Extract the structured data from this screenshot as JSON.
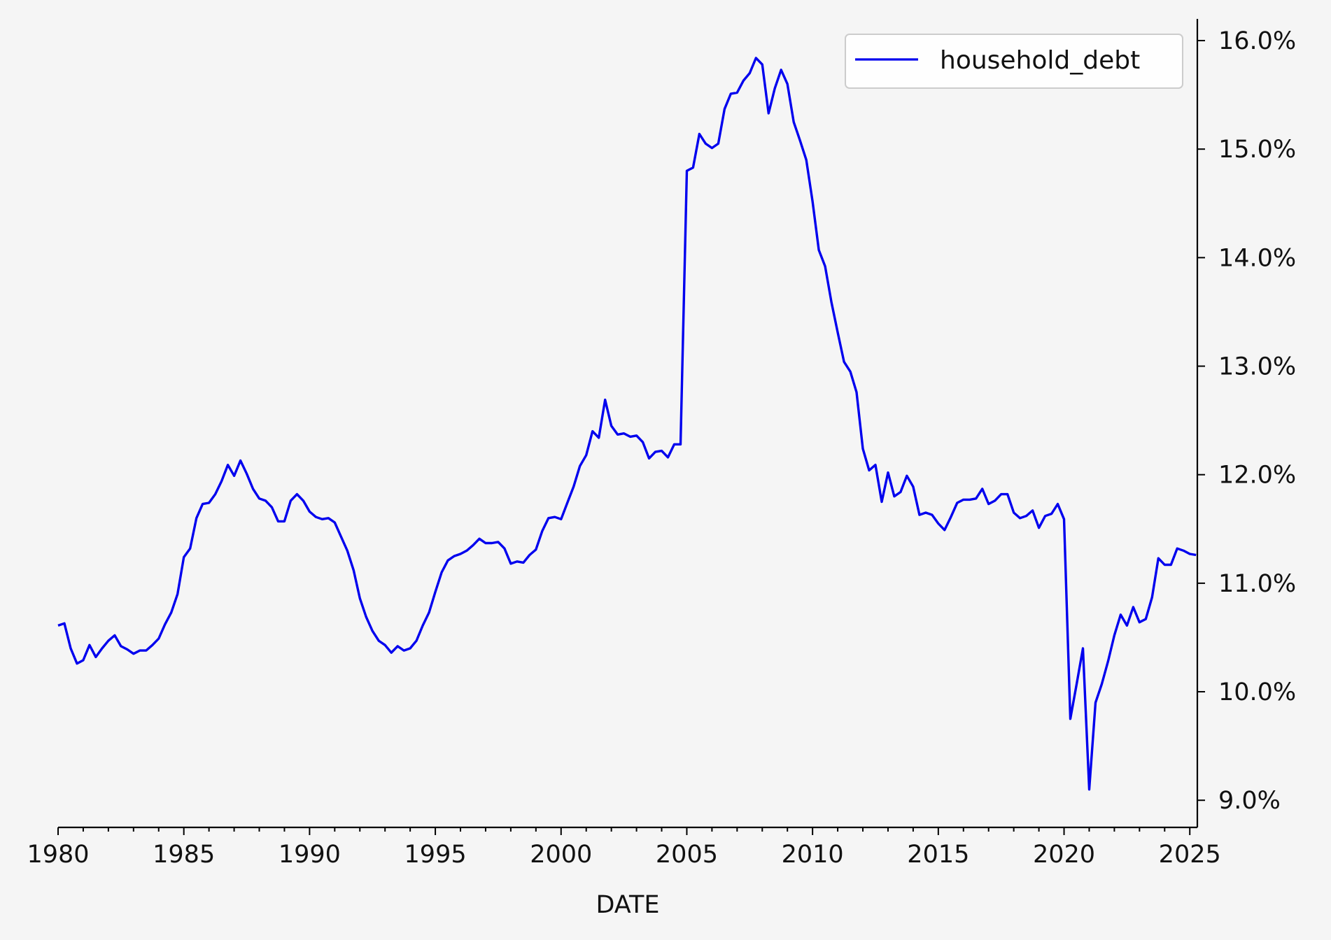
{
  "chart_data": {
    "type": "line",
    "title": "",
    "xlabel": "DATE",
    "ylabel": "",
    "xlim": [
      1980,
      2025.3
    ],
    "ylim": [
      8.75,
      16.2
    ],
    "y_axis_position": "right",
    "y_tick_format": "percent",
    "grid": false,
    "legend_position": "top-right",
    "x_ticks": [
      "1980",
      "1985",
      "1990",
      "1995",
      "2000",
      "2005",
      "2010",
      "2015",
      "2020",
      "2025"
    ],
    "y_ticks": [
      "9.0%",
      "10.0%",
      "11.0%",
      "12.0%",
      "13.0%",
      "14.0%",
      "15.0%",
      "16.0%"
    ],
    "series": [
      {
        "name": "household_debt",
        "color": "#0000ee",
        "x": [
          1980.0,
          1980.25,
          1980.5,
          1980.75,
          1981.0,
          1981.25,
          1981.5,
          1981.75,
          1982.0,
          1982.25,
          1982.5,
          1982.75,
          1983.0,
          1983.25,
          1983.5,
          1983.75,
          1984.0,
          1984.25,
          1984.5,
          1984.75,
          1985.0,
          1985.25,
          1985.5,
          1985.75,
          1986.0,
          1986.25,
          1986.5,
          1986.75,
          1987.0,
          1987.25,
          1987.5,
          1987.75,
          1988.0,
          1988.25,
          1988.5,
          1988.75,
          1989.0,
          1989.25,
          1989.5,
          1989.75,
          1990.0,
          1990.25,
          1990.5,
          1990.75,
          1991.0,
          1991.25,
          1991.5,
          1991.75,
          1992.0,
          1992.25,
          1992.5,
          1992.75,
          1993.0,
          1993.25,
          1993.5,
          1993.75,
          1994.0,
          1994.25,
          1994.5,
          1994.75,
          1995.0,
          1995.25,
          1995.5,
          1995.75,
          1996.0,
          1996.25,
          1996.5,
          1996.75,
          1997.0,
          1997.25,
          1997.5,
          1997.75,
          1998.0,
          1998.25,
          1998.5,
          1998.75,
          1999.0,
          1999.25,
          1999.5,
          1999.75,
          2000.0,
          2000.25,
          2000.5,
          2000.75,
          2001.0,
          2001.25,
          2001.5,
          2001.75,
          2002.0,
          2002.25,
          2002.5,
          2002.75,
          2003.0,
          2003.25,
          2003.5,
          2003.75,
          2004.0,
          2004.25,
          2004.5,
          2004.75,
          2005.0,
          2005.25,
          2005.5,
          2005.75,
          2006.0,
          2006.25,
          2006.5,
          2006.75,
          2007.0,
          2007.25,
          2007.5,
          2007.75,
          2008.0,
          2008.25,
          2008.5,
          2008.75,
          2009.0,
          2009.25,
          2009.5,
          2009.75,
          2010.0,
          2010.25,
          2010.5,
          2010.75,
          2011.0,
          2011.25,
          2011.5,
          2011.75,
          2012.0,
          2012.25,
          2012.5,
          2012.75,
          2013.0,
          2013.25,
          2013.5,
          2013.75,
          2014.0,
          2014.25,
          2014.5,
          2014.75,
          2015.0,
          2015.25,
          2015.5,
          2015.75,
          2016.0,
          2016.25,
          2016.5,
          2016.75,
          2017.0,
          2017.25,
          2017.5,
          2017.75,
          2018.0,
          2018.25,
          2018.5,
          2018.75,
          2019.0,
          2019.25,
          2019.5,
          2019.75,
          2020.0,
          2020.25,
          2020.5,
          2020.75,
          2021.0,
          2021.25,
          2021.5,
          2021.75,
          2022.0,
          2022.25,
          2022.5,
          2022.75,
          2023.0,
          2023.25,
          2023.5,
          2023.75,
          2024.0,
          2024.25,
          2024.5,
          2024.75,
          2025.0,
          2025.25
        ],
        "values": [
          10.61,
          10.63,
          10.4,
          10.26,
          10.29,
          10.43,
          10.32,
          10.4,
          10.47,
          10.52,
          10.42,
          10.39,
          10.35,
          10.38,
          10.38,
          10.43,
          10.49,
          10.62,
          10.73,
          10.9,
          11.24,
          11.32,
          11.6,
          11.73,
          11.74,
          11.82,
          11.94,
          12.09,
          11.99,
          12.13,
          12.01,
          11.87,
          11.78,
          11.76,
          11.7,
          11.57,
          11.57,
          11.76,
          11.82,
          11.76,
          11.66,
          11.61,
          11.59,
          11.6,
          11.56,
          11.43,
          11.3,
          11.12,
          10.86,
          10.69,
          10.56,
          10.47,
          10.43,
          10.36,
          10.42,
          10.38,
          10.4,
          10.47,
          10.61,
          10.73,
          10.92,
          11.1,
          11.21,
          11.25,
          11.27,
          11.3,
          11.35,
          11.41,
          11.37,
          11.37,
          11.38,
          11.32,
          11.18,
          11.2,
          11.19,
          11.26,
          11.31,
          11.48,
          11.6,
          11.61,
          11.59,
          11.74,
          11.89,
          12.08,
          12.18,
          12.4,
          12.34,
          12.69,
          12.45,
          12.37,
          12.38,
          12.35,
          12.36,
          12.3,
          12.15,
          12.21,
          12.22,
          12.16,
          12.28,
          12.28,
          14.8,
          14.83,
          15.14,
          15.05,
          15.01,
          15.05,
          15.37,
          15.51,
          15.52,
          15.63,
          15.7,
          15.84,
          15.78,
          15.33,
          15.56,
          15.73,
          15.6,
          15.25,
          15.08,
          14.9,
          14.52,
          14.07,
          13.92,
          13.59,
          13.31,
          13.04,
          12.95,
          12.76,
          12.24,
          12.04,
          12.09,
          11.75,
          12.02,
          11.8,
          11.84,
          11.99,
          11.89,
          11.63,
          11.65,
          11.63,
          11.55,
          11.49,
          11.61,
          11.74,
          11.77,
          11.77,
          11.78,
          11.87,
          11.73,
          11.76,
          11.82,
          11.82,
          11.65,
          11.6,
          11.62,
          11.67,
          11.51,
          11.62,
          11.64,
          11.73,
          11.59,
          9.75,
          10.07,
          10.4,
          9.1,
          9.9,
          10.07,
          10.28,
          10.52,
          10.71,
          10.61,
          10.78,
          10.64,
          10.67,
          10.87,
          11.23,
          11.17,
          11.17,
          11.32,
          11.3,
          11.27,
          11.26
        ]
      }
    ]
  }
}
